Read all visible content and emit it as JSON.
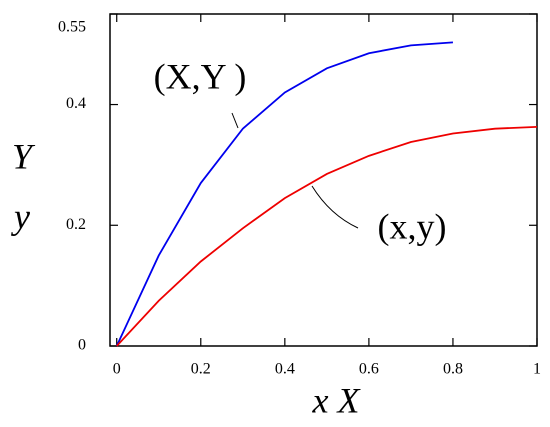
{
  "chart_data": {
    "type": "line",
    "x_label": "x X",
    "y_label_lines": [
      "Y",
      "y"
    ],
    "x": [
      0,
      0.1,
      0.2,
      0.3,
      0.4,
      0.5,
      0.6,
      0.7,
      0.8,
      0.9,
      1
    ],
    "series": [
      {
        "name": "(X,Y )",
        "color": "#0000ee",
        "values": [
          0,
          0.15,
          0.27,
          0.36,
          0.42,
          0.46,
          0.485,
          0.498,
          0.503,
          null,
          null
        ]
      },
      {
        "name": "(x,y)",
        "color": "#ee0000",
        "values": [
          0,
          0.075,
          0.14,
          0.195,
          0.245,
          0.285,
          0.315,
          0.338,
          0.352,
          0.36,
          0.363
        ]
      }
    ],
    "xlim": [
      -0.016,
      1
    ],
    "ylim": [
      0,
      0.55
    ],
    "xticks": [
      0,
      0.2,
      0.4,
      0.6,
      0.8,
      1
    ],
    "yticks": [
      0,
      0.2,
      0.4,
      0.55
    ],
    "grid": false
  }
}
